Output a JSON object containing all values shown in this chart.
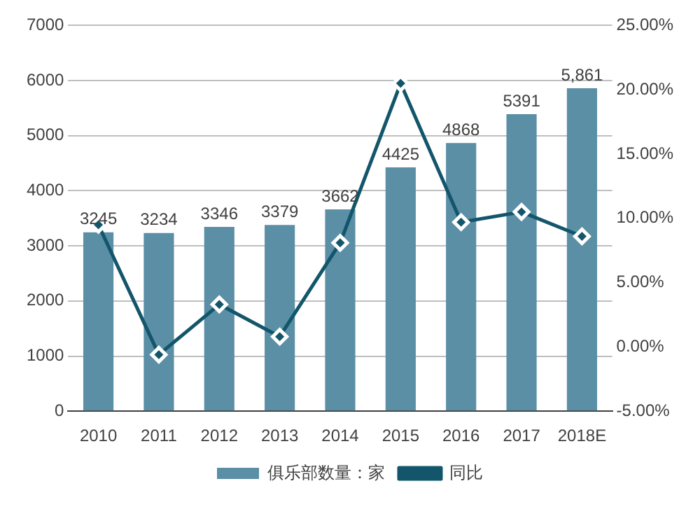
{
  "chart_data": {
    "type": "bar",
    "categories": [
      "2010",
      "2011",
      "2012",
      "2013",
      "2014",
      "2015",
      "2016",
      "2017",
      "2018E"
    ],
    "series": [
      {
        "name": "俱乐部数量：家",
        "color": "#5b8fa6",
        "values": [
          3245,
          3234,
          3346,
          3379,
          3662,
          4425,
          4868,
          5391,
          5861
        ],
        "value_labels": [
          "3245",
          "3234",
          "3346",
          "3379",
          "3662",
          "4425",
          "4868",
          "5391",
          "5,861"
        ]
      },
      {
        "name": "同比",
        "type": "line",
        "axis": "y2",
        "color": "#13566b",
        "marker": "diamond",
        "values": [
          9.5,
          -0.6,
          3.3,
          0.8,
          8.1,
          20.5,
          9.7,
          10.5,
          8.6
        ]
      }
    ],
    "ylim": [
      0,
      7000
    ],
    "yticks": [
      0,
      1000,
      2000,
      3000,
      4000,
      5000,
      6000,
      7000
    ],
    "y2lim": [
      -5,
      25
    ],
    "y2ticks": [
      {
        "value": -5,
        "label": "-5.00%"
      },
      {
        "value": 0,
        "label": "0.00%"
      },
      {
        "value": 5,
        "label": "5.00%"
      },
      {
        "value": 10,
        "label": "10.00%"
      },
      {
        "value": 15,
        "label": "15.00%"
      },
      {
        "value": 20,
        "label": "20.00%"
      },
      {
        "value": 25,
        "label": "25.00%"
      }
    ],
    "grid": "y",
    "legend": "bottom"
  }
}
